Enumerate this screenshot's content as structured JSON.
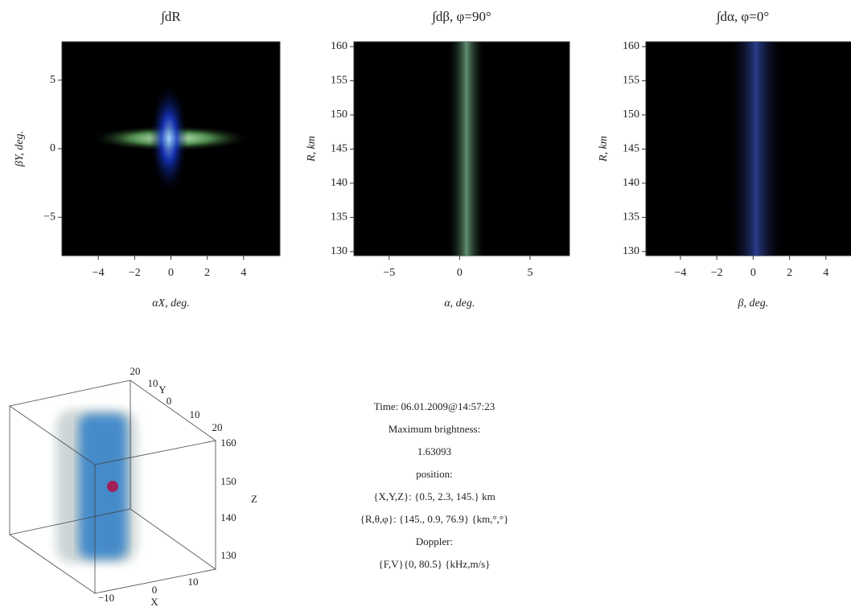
{
  "chart_data": [
    {
      "type": "image",
      "title": "∫dR",
      "x_label": "αX, deg.",
      "y_label": "βY, deg.",
      "xlim": [
        -6,
        6
      ],
      "ylim": [
        -7.8,
        7.8
      ],
      "xticks": [
        {
          "value": -4,
          "label": "−4"
        },
        {
          "value": -2,
          "label": "−2"
        },
        0,
        2,
        4
      ],
      "yticks": [
        {
          "value": -5,
          "label": "−5"
        },
        0,
        5
      ]
    },
    {
      "type": "image",
      "title": "∫dβ, φ=90°",
      "x_label": "α, deg.",
      "y_label": "R, km",
      "xlim": [
        -7.5,
        7.8
      ],
      "ylim": [
        129.4,
        160.7
      ],
      "xticks": [
        {
          "value": -5,
          "label": "−5"
        },
        0,
        5
      ],
      "yticks": [
        130,
        135,
        140,
        145,
        150,
        155,
        160
      ]
    },
    {
      "type": "image",
      "title": "∫dα, φ=0°",
      "x_label": "β, deg.",
      "y_label": "R, km",
      "xlim": [
        -5.9,
        6
      ],
      "ylim": [
        129.4,
        160.7
      ],
      "xticks": [
        {
          "value": -4,
          "label": "−4"
        },
        {
          "value": -2,
          "label": "−2"
        },
        0,
        2,
        4
      ],
      "yticks": [
        130,
        135,
        140,
        145,
        150,
        155,
        160
      ]
    }
  ],
  "cube": {
    "labels": [
      "20",
      "10",
      "Y",
      "0",
      "10",
      "20",
      "160",
      "150",
      "Z",
      "140",
      "130",
      "−10",
      "0",
      "X",
      "10"
    ]
  },
  "info": {
    "lines": [
      "Time: 06.01.2009@14:57:23",
      "Maximum brightness:",
      "1.63093",
      "position:",
      "{X,Y,Z}: {0.5, 2.3, 145.} km",
      "{R,θ,φ}: {145., 0.9, 76.9} {km,°,°}",
      "Doppler:",
      "{F,V}{0, 80.5} {kHz,m/s}"
    ]
  }
}
